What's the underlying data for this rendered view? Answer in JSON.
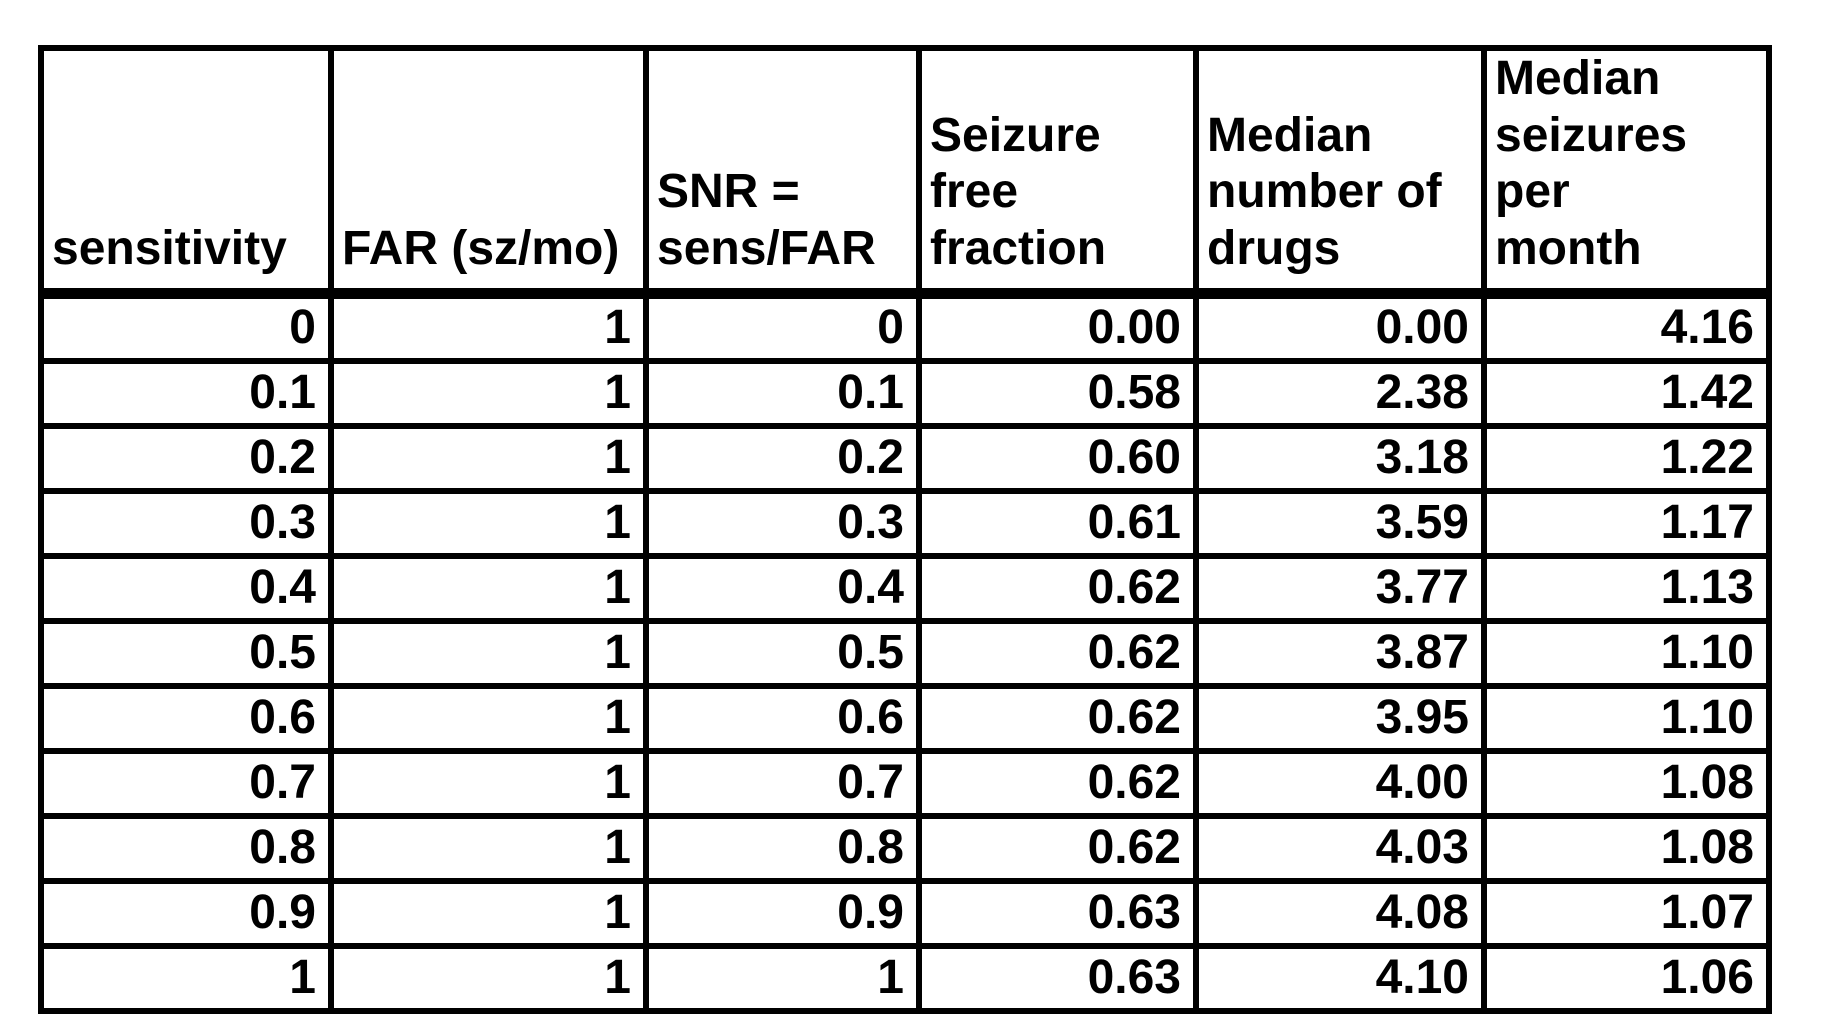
{
  "table": {
    "header_display": [
      "sensitivity",
      "FAR (sz/mo)",
      "SNR =\nsens/FAR",
      "Seizure free\nfraction",
      "Median\nnumber of\ndrugs",
      "Median\nseizures per\nmonth"
    ],
    "rows": [
      [
        "0",
        "1",
        "0",
        "0.00",
        "0.00",
        "4.16"
      ],
      [
        "0.1",
        "1",
        "0.1",
        "0.58",
        "2.38",
        "1.42"
      ],
      [
        "0.2",
        "1",
        "0.2",
        "0.60",
        "3.18",
        "1.22"
      ],
      [
        "0.3",
        "1",
        "0.3",
        "0.61",
        "3.59",
        "1.17"
      ],
      [
        "0.4",
        "1",
        "0.4",
        "0.62",
        "3.77",
        "1.13"
      ],
      [
        "0.5",
        "1",
        "0.5",
        "0.62",
        "3.87",
        "1.10"
      ],
      [
        "0.6",
        "1",
        "0.6",
        "0.62",
        "3.95",
        "1.10"
      ],
      [
        "0.7",
        "1",
        "0.7",
        "0.62",
        "4.00",
        "1.08"
      ],
      [
        "0.8",
        "1",
        "0.8",
        "0.62",
        "4.03",
        "1.08"
      ],
      [
        "0.9",
        "1",
        "0.9",
        "0.63",
        "4.08",
        "1.07"
      ],
      [
        "1",
        "1",
        "1",
        "0.63",
        "4.10",
        "1.06"
      ]
    ],
    "colors": {
      "border": "#000000",
      "text": "#000000",
      "background": "#ffffff"
    }
  },
  "chart_data": {
    "type": "table",
    "columns": [
      "sensitivity",
      "FAR (sz/mo)",
      "SNR = sens/FAR",
      "Seizure free fraction",
      "Median number of drugs",
      "Median seizures per month"
    ],
    "rows": [
      [
        0,
        1,
        0,
        0.0,
        0.0,
        4.16
      ],
      [
        0.1,
        1,
        0.1,
        0.58,
        2.38,
        1.42
      ],
      [
        0.2,
        1,
        0.2,
        0.6,
        3.18,
        1.22
      ],
      [
        0.3,
        1,
        0.3,
        0.61,
        3.59,
        1.17
      ],
      [
        0.4,
        1,
        0.4,
        0.62,
        3.77,
        1.13
      ],
      [
        0.5,
        1,
        0.5,
        0.62,
        3.87,
        1.1
      ],
      [
        0.6,
        1,
        0.6,
        0.62,
        3.95,
        1.1
      ],
      [
        0.7,
        1,
        0.7,
        0.62,
        4.0,
        1.08
      ],
      [
        0.8,
        1,
        0.8,
        0.62,
        4.03,
        1.08
      ],
      [
        0.9,
        1,
        0.9,
        0.63,
        4.08,
        1.07
      ],
      [
        1,
        1,
        1,
        0.63,
        4.1,
        1.06
      ]
    ]
  }
}
